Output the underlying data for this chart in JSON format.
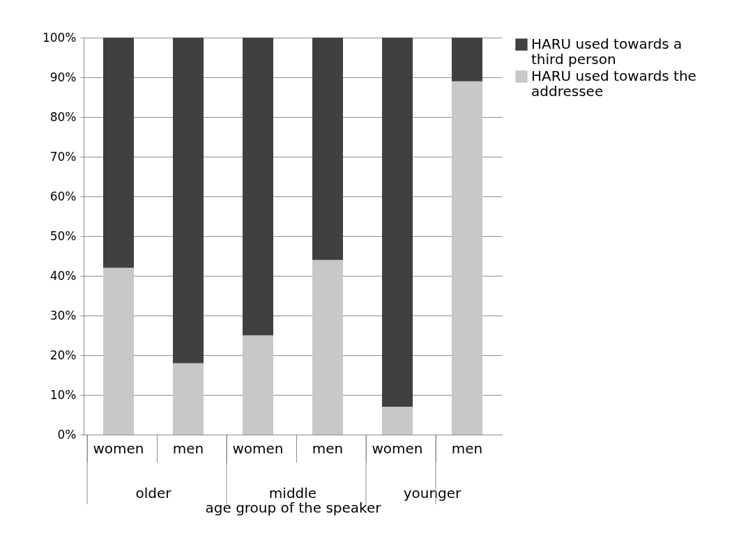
{
  "chart_data": {
    "type": "bar",
    "stacked": true,
    "categories": [
      "women",
      "men",
      "women",
      "men",
      "women",
      "men"
    ],
    "series": [
      {
        "name": "HARU used towards the addressee",
        "color": "#c8c8c8",
        "values": [
          42,
          18,
          25,
          44,
          7,
          89
        ]
      },
      {
        "name": "HARU used towards a third person",
        "color": "#404040",
        "values": [
          58,
          82,
          75,
          56,
          93,
          11
        ]
      }
    ],
    "xlabel": "age group of the speaker",
    "annotations": [
      "older",
      "middle",
      "younger"
    ],
    "ylim": [
      0,
      100
    ],
    "yticks": [
      {
        "value": 0,
        "label": "0%"
      },
      {
        "value": 10,
        "label": "10%"
      },
      {
        "value": 20,
        "label": "20%"
      },
      {
        "value": 30,
        "label": "30%"
      },
      {
        "value": 40,
        "label": "40%"
      },
      {
        "value": 50,
        "label": "50%"
      },
      {
        "value": 60,
        "label": "60%"
      },
      {
        "value": 70,
        "label": "70%"
      },
      {
        "value": 80,
        "label": "80%"
      },
      {
        "value": 90,
        "label": "90%"
      },
      {
        "value": 100,
        "label": "100%"
      }
    ],
    "grid": "y",
    "legend": "right"
  }
}
